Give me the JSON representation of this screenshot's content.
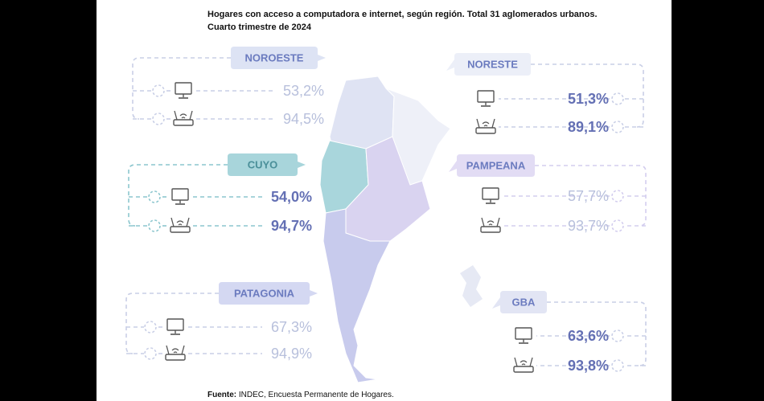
{
  "title": "Hogares con acceso a computadora e internet, según región. Total 31 aglomerados urbanos.",
  "subtitle": "Cuarto trimestre de 2024",
  "regions": [
    {
      "name": "NOROESTE",
      "computer": "53,2%",
      "internet": "94,5%"
    },
    {
      "name": "NORESTE",
      "computer": "51,3%",
      "internet": "89,1%"
    },
    {
      "name": "CUYO",
      "computer": "54,0%",
      "internet": "94,7%"
    },
    {
      "name": "PAMPEANA",
      "computer": "57,7%",
      "internet": "93,7%"
    },
    {
      "name": "PATAGONIA",
      "computer": "67,3%",
      "internet": "94,9%"
    },
    {
      "name": "GBA",
      "computer": "63,6%",
      "internet": "93,8%"
    }
  ],
  "source": {
    "label": "Fuente:",
    "text": "INDEC, Encuesta Permanente de Hogares."
  }
}
